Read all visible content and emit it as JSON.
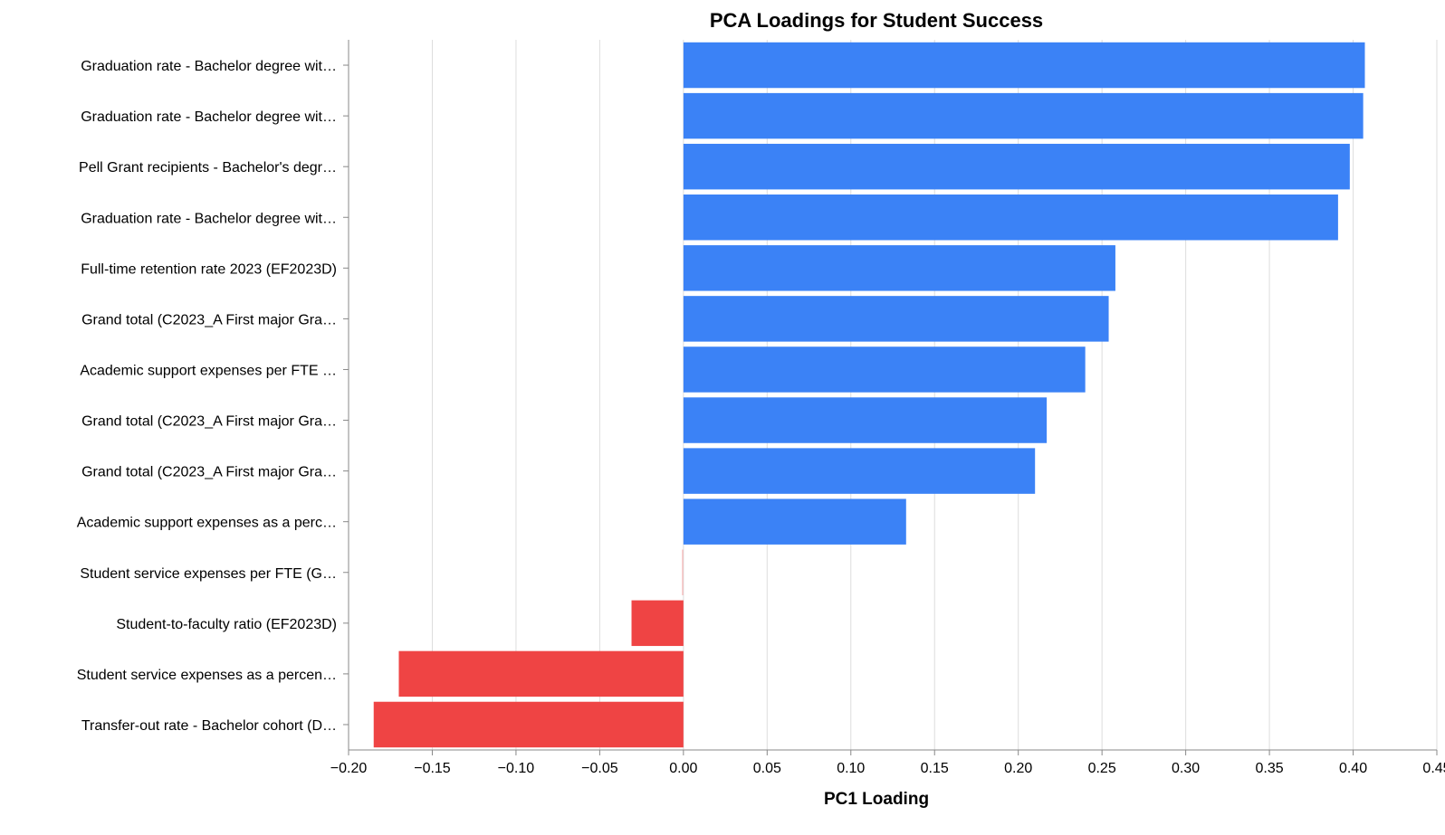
{
  "chart_data": {
    "type": "bar",
    "orientation": "horizontal",
    "title": "PCA Loadings for Student Success",
    "xlabel": "PC1 Loading",
    "ylabel": "",
    "xlim": [
      -0.2,
      0.45
    ],
    "x_ticks": [
      "−0.20",
      "−0.15",
      "−0.10",
      "−0.05",
      "0.00",
      "0.05",
      "0.10",
      "0.15",
      "0.20",
      "0.25",
      "0.30",
      "0.35",
      "0.40",
      "0.45"
    ],
    "x_tick_values": [
      -0.2,
      -0.15,
      -0.1,
      -0.05,
      0.0,
      0.05,
      0.1,
      0.15,
      0.2,
      0.25,
      0.3,
      0.35,
      0.4,
      0.45
    ],
    "grid": true,
    "colors": {
      "positive": "#3b82f6",
      "negative": "#ef4444",
      "grid": "#dddddd",
      "axis": "#888888"
    },
    "categories": [
      "Graduation rate - Bachelor degree wit…",
      "Graduation rate - Bachelor degree wit…",
      "Pell Grant recipients - Bachelor's degr…",
      "Graduation rate - Bachelor degree wit…",
      "Full-time retention rate 2023 (EF2023D)",
      "Grand total (C2023_A First major Gra…",
      "Academic support expenses per FTE …",
      "Grand total (C2023_A First major Gra…",
      "Grand total (C2023_A First major Gra…",
      "Academic support expenses as a perc…",
      "Student service expenses per FTE (G…",
      "Student-to-faculty ratio (EF2023D)",
      "Student service expenses as a percen…",
      "Transfer-out rate - Bachelor cohort (D…"
    ],
    "values": [
      0.407,
      0.406,
      0.398,
      0.391,
      0.258,
      0.254,
      0.24,
      0.217,
      0.21,
      0.133,
      -0.001,
      -0.031,
      -0.17,
      -0.185
    ]
  }
}
